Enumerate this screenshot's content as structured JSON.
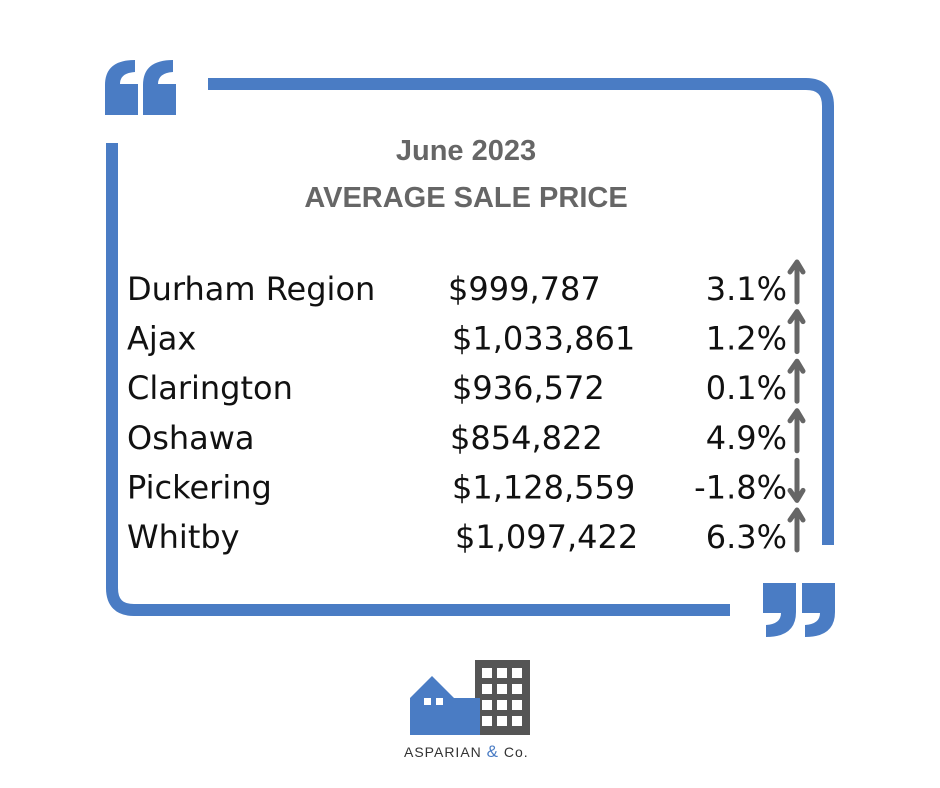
{
  "header": {
    "title": "June 2023",
    "subtitle": "AVERAGE SALE PRICE"
  },
  "table": {
    "rows": [
      {
        "region": "Durham Region",
        "price": "$999,787",
        "change": "3.1%",
        "trend": "up"
      },
      {
        "region": "Ajax",
        "price": "$1,033,861",
        "change": "1.2%",
        "trend": "up"
      },
      {
        "region": "Clarington",
        "price": "$936,572",
        "change": "0.1%",
        "trend": "up"
      },
      {
        "region": "Oshawa",
        "price": "$854,822",
        "change": "4.9%",
        "trend": "up"
      },
      {
        "region": "Pickering",
        "price": "$1,128,559",
        "change": "-1.8%",
        "trend": "down"
      },
      {
        "region": "Whitby",
        "price": "$1,097,422",
        "change": "6.3%",
        "trend": "up"
      }
    ]
  },
  "logo": {
    "name": "ASPARIAN",
    "amp": "&",
    "suffix": "Co."
  }
}
